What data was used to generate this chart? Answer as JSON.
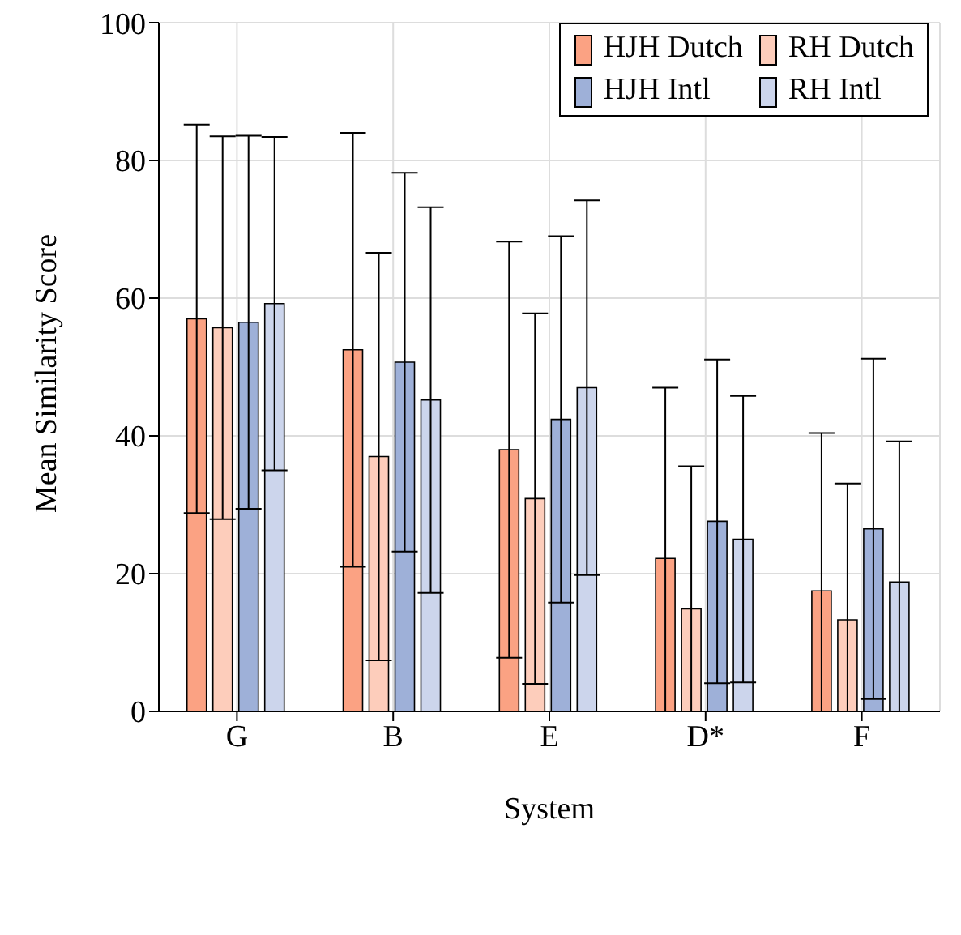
{
  "chart_data": {
    "type": "bar",
    "xlabel": "System",
    "ylabel": "Mean Similarity Score",
    "categories": [
      "G",
      "B",
      "E",
      "D*",
      "F"
    ],
    "series": [
      {
        "name": "HJH Dutch",
        "color": "#fba283",
        "values": [
          57,
          52.5,
          38,
          22.2,
          17.5
        ],
        "errors": [
          28.2,
          31.5,
          30.2,
          [
            0,
            47
          ],
          [
            0,
            40.4
          ]
        ]
      },
      {
        "name": "RH Dutch",
        "color": "#fdcdbb",
        "values": [
          55.7,
          37,
          30.9,
          14.9,
          13.3
        ],
        "errors": [
          27.8,
          29.6,
          26.9,
          [
            0,
            35.6
          ],
          [
            0,
            33.1
          ]
        ]
      },
      {
        "name": "HJH Intl",
        "color": "#9eb0d8",
        "values": [
          56.5,
          50.7,
          42.4,
          27.6,
          26.5
        ],
        "errors": [
          27.1,
          27.5,
          26.6,
          23.5,
          24.7
        ]
      },
      {
        "name": "RH Intl",
        "color": "#ccd5ec",
        "values": [
          59.2,
          45.2,
          47,
          25,
          18.8
        ],
        "errors": [
          24.2,
          28,
          27.2,
          20.8,
          [
            0,
            39.2
          ]
        ]
      }
    ],
    "ylim": [
      0,
      100
    ],
    "yticks": [
      0,
      20,
      40,
      60,
      80,
      100
    ],
    "grid": true,
    "legend": "top right"
  }
}
